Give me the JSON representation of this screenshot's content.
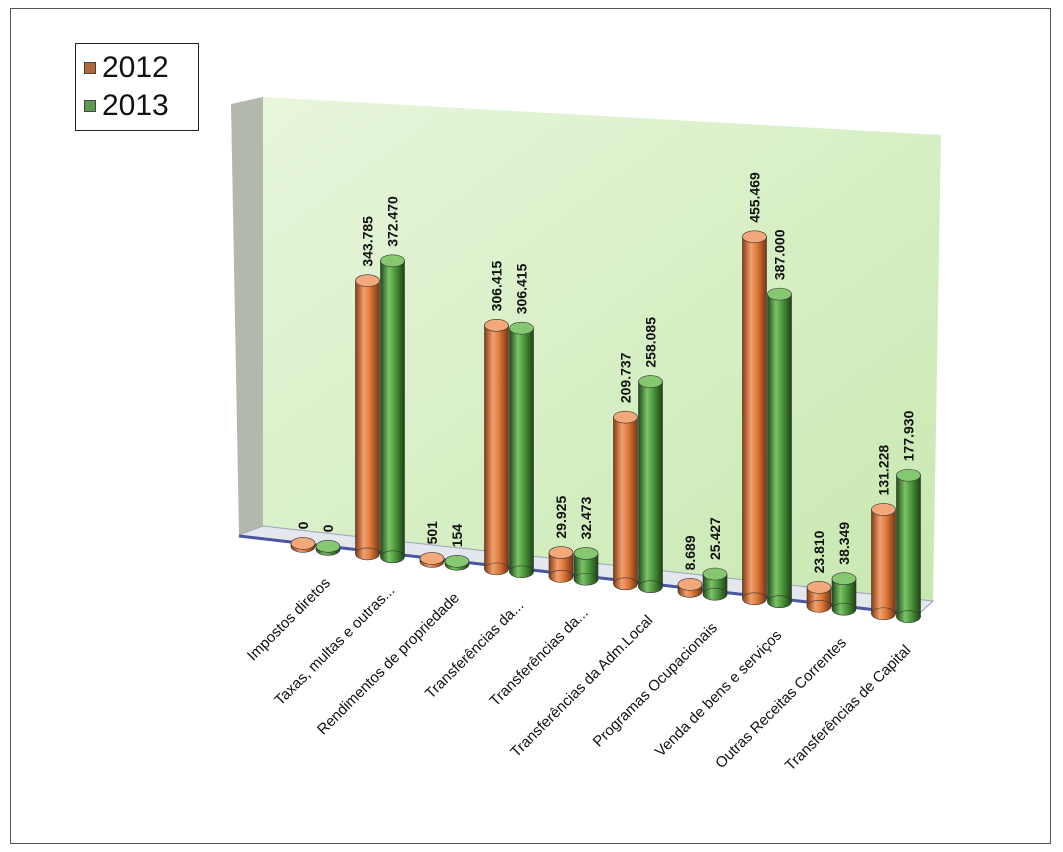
{
  "chart_data": {
    "type": "bar",
    "categories": [
      "Impostos diretos",
      "Taxas, multas e outras...",
      "Rendimentos de propriedade",
      "Transferências da...",
      "Transferências da...",
      "Transferências da Adm.Local",
      "Programas Ocupacionais",
      "Venda de bens e serviços",
      "Outras Receitas Correntes",
      "Transferências de Capital"
    ],
    "series": [
      {
        "name": "2012",
        "values": [
          0,
          343785,
          501,
          306415,
          29925,
          209737,
          8689,
          455469,
          23810,
          131228
        ],
        "labels": [
          "0",
          "343.785",
          "501",
          "306.415",
          "29.925",
          "209.737",
          "8.689",
          "455.469",
          "23.810",
          "131.228"
        ],
        "color": "#e07b3c"
      },
      {
        "name": "2013",
        "values": [
          0,
          372470,
          154,
          306415,
          32473,
          258085,
          25427,
          387000,
          38349,
          177930
        ],
        "labels": [
          "0",
          "372.470",
          "154",
          "306.415",
          "32.473",
          "258.085",
          "25.427",
          "387.000",
          "38.349",
          "177.930"
        ],
        "color": "#4f9a3c"
      }
    ],
    "title": "",
    "xlabel": "",
    "ylabel": "",
    "ylim": [
      0,
      500000
    ],
    "legend": "top-left",
    "grid": false
  }
}
